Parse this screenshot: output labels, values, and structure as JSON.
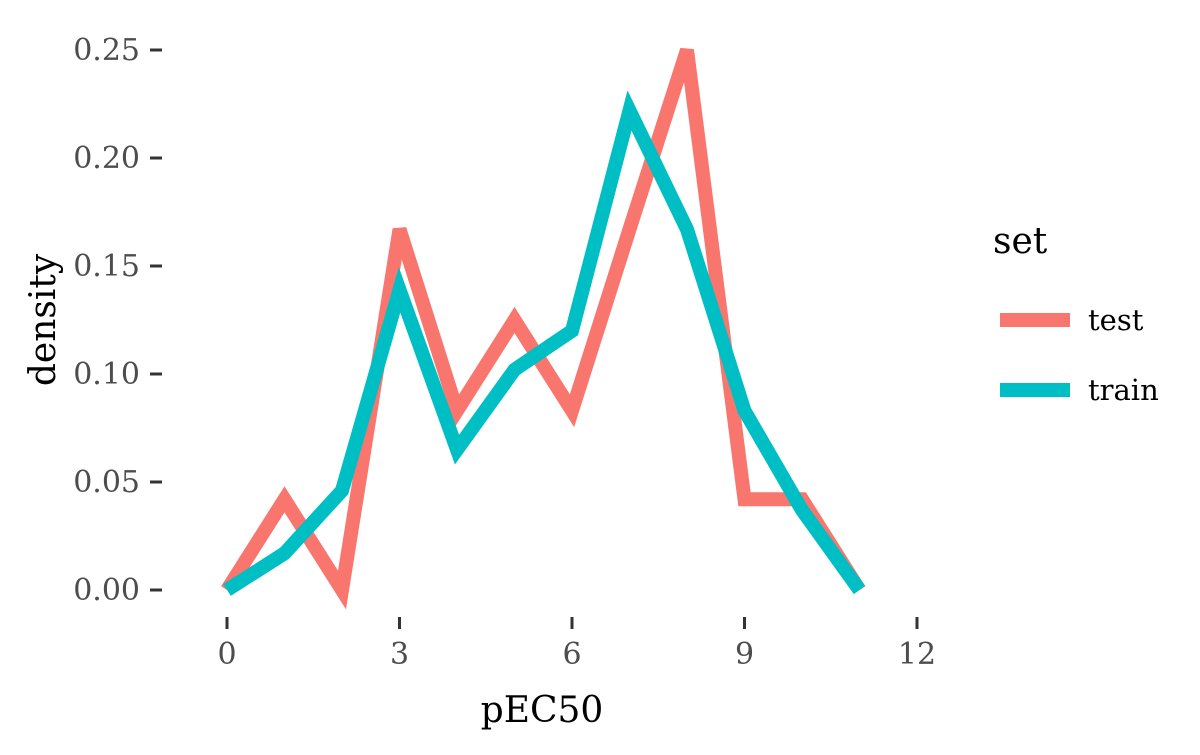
{
  "chart_data": {
    "type": "line",
    "xlabel": "pEC50",
    "ylabel": "density",
    "xlim": [
      0,
      12
    ],
    "ylim": [
      0,
      0.25
    ],
    "x_ticks": [
      0,
      3,
      6,
      9,
      12
    ],
    "x_tick_labels": [
      "0",
      "3",
      "6",
      "9",
      "12"
    ],
    "y_ticks": [
      0,
      0.05,
      0.1,
      0.15,
      0.2,
      0.25
    ],
    "y_tick_labels": [
      "0.00",
      "0.05",
      "0.10",
      "0.15",
      "0.20",
      "0.25"
    ],
    "grid": false,
    "legend": {
      "title": "set",
      "position": "right"
    },
    "series": [
      {
        "name": "test",
        "color": "#F8766D",
        "x": [
          0,
          1,
          2,
          3,
          4,
          5,
          6,
          7,
          8,
          9,
          10,
          11
        ],
        "y": [
          0.0,
          0.042,
          0.0,
          0.167,
          0.083,
          0.125,
          0.083,
          0.167,
          0.25,
          0.042,
          0.042,
          0.0
        ]
      },
      {
        "name": "train",
        "color": "#00BFC4",
        "x": [
          0,
          1,
          2,
          3,
          4,
          5,
          6,
          7,
          8,
          9,
          10,
          11
        ],
        "y": [
          0.0,
          0.017,
          0.046,
          0.139,
          0.065,
          0.102,
          0.12,
          0.222,
          0.167,
          0.083,
          0.037,
          0.0
        ]
      }
    ]
  }
}
